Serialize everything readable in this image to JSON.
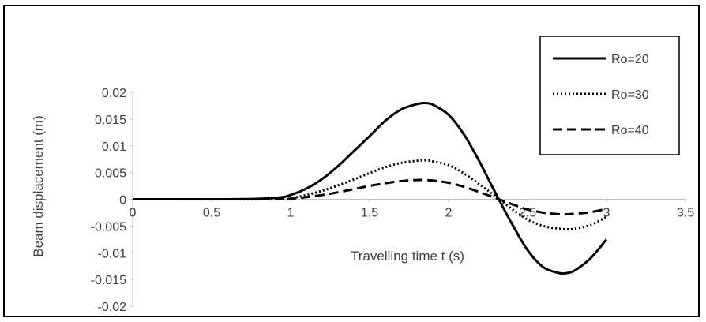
{
  "chart_data": {
    "type": "line",
    "title": "",
    "xlabel": "Travelling time t (s)",
    "ylabel": "Beam displacement (m)",
    "xlim": [
      0,
      3.5
    ],
    "ylim": [
      -0.02,
      0.02
    ],
    "x_ticks": [
      "0",
      "0.5",
      "1",
      "1.5",
      "2",
      "2.5",
      "3",
      "3.5"
    ],
    "y_ticks": [
      "0.02",
      "0.015",
      "0.01",
      "0.005",
      "0",
      "-0.005",
      "-0.01",
      "-0.015",
      "-0.02"
    ],
    "grid": false,
    "legend_position": "top-right",
    "series": [
      {
        "name": "Ro=20",
        "style": "solid",
        "x": [
          0,
          0.5,
          0.8,
          0.95,
          1.0,
          1.1,
          1.2,
          1.3,
          1.4,
          1.5,
          1.6,
          1.7,
          1.8,
          1.85,
          1.9,
          2.0,
          2.1,
          2.2,
          2.3,
          2.4,
          2.5,
          2.6,
          2.7,
          2.75,
          2.8,
          2.9,
          3.0
        ],
        "y": [
          0,
          0,
          0.0001,
          0.0004,
          0.0008,
          0.002,
          0.0038,
          0.0062,
          0.009,
          0.0118,
          0.0147,
          0.0168,
          0.0178,
          0.018,
          0.0177,
          0.0158,
          0.012,
          0.0068,
          0.001,
          -0.0045,
          -0.0095,
          -0.0127,
          -0.0138,
          -0.0138,
          -0.0133,
          -0.011,
          -0.0075
        ]
      },
      {
        "name": "Ro=30",
        "style": "dotted",
        "x": [
          0,
          0.9,
          1.0,
          1.1,
          1.2,
          1.3,
          1.4,
          1.5,
          1.6,
          1.7,
          1.8,
          1.85,
          1.9,
          2.0,
          2.1,
          2.2,
          2.3,
          2.4,
          2.5,
          2.6,
          2.7,
          2.75,
          2.8,
          2.9,
          3.0
        ],
        "y": [
          0,
          0,
          0.0002,
          0.0008,
          0.0016,
          0.0026,
          0.0037,
          0.0049,
          0.006,
          0.0068,
          0.0072,
          0.0073,
          0.0071,
          0.0064,
          0.0048,
          0.0027,
          0.0005,
          -0.0018,
          -0.0038,
          -0.005,
          -0.0055,
          -0.0056,
          -0.0055,
          -0.0048,
          -0.0033
        ]
      },
      {
        "name": "Ro=40",
        "style": "dashed",
        "x": [
          0,
          0.9,
          1.0,
          1.1,
          1.2,
          1.3,
          1.4,
          1.5,
          1.6,
          1.7,
          1.8,
          1.85,
          1.9,
          2.0,
          2.1,
          2.2,
          2.3,
          2.4,
          2.5,
          2.6,
          2.7,
          2.75,
          2.8,
          2.9,
          3.0
        ],
        "y": [
          0,
          0,
          0.0001,
          0.0004,
          0.0008,
          0.0013,
          0.0019,
          0.0025,
          0.003,
          0.0034,
          0.0036,
          0.0036,
          0.0035,
          0.0031,
          0.0023,
          0.0013,
          0.0002,
          -0.0009,
          -0.0019,
          -0.0025,
          -0.0028,
          -0.0028,
          -0.0027,
          -0.0024,
          -0.0018
        ]
      }
    ]
  }
}
